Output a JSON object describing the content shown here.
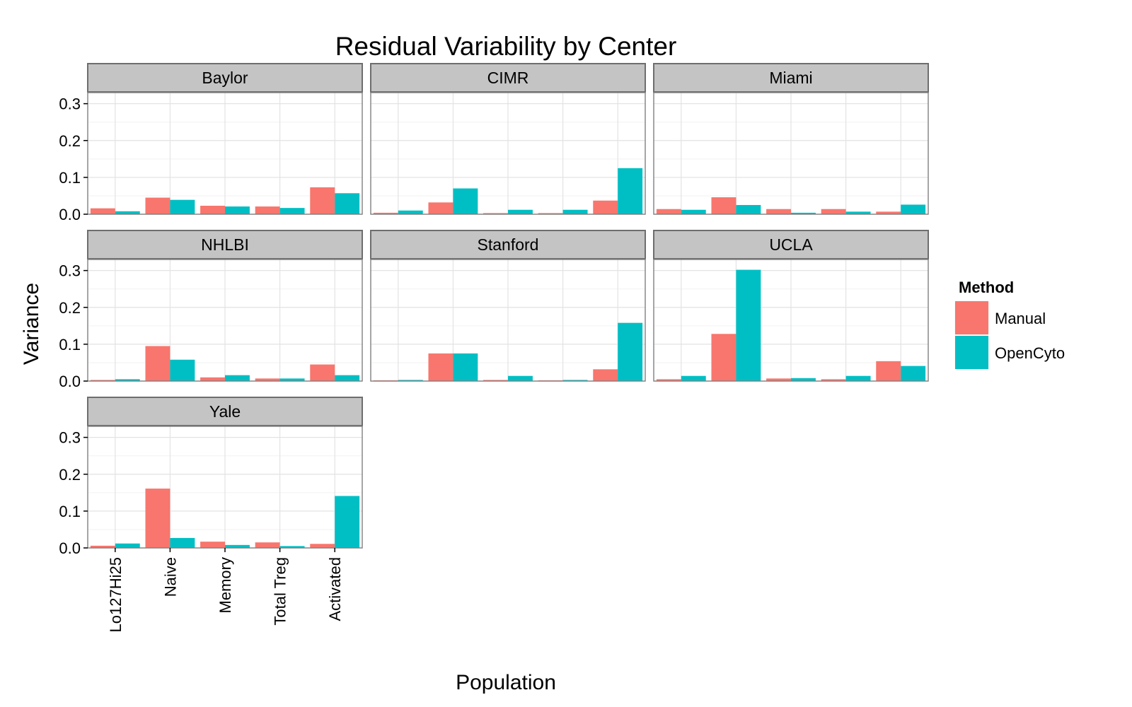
{
  "chart_data": {
    "type": "bar",
    "title": "Residual Variability by Center",
    "xlabel": "Population",
    "ylabel": "Variance",
    "ylim": [
      0,
      0.33
    ],
    "yticks": [
      "0.0",
      "0.1",
      "0.2",
      "0.3"
    ],
    "grid": true,
    "legend": {
      "title": "Method",
      "placement": "right"
    },
    "categories": [
      "Lo127Hi25",
      "Naive",
      "Memory",
      "Total Treg",
      "Activated"
    ],
    "series_names": [
      "Manual",
      "OpenCyto"
    ],
    "colors": {
      "Manual": "#F8766D",
      "OpenCyto": "#00BFC4"
    },
    "facets": [
      {
        "name": "Baylor",
        "series": [
          {
            "name": "Manual",
            "values": [
              0.016,
              0.045,
              0.023,
              0.021,
              0.073
            ]
          },
          {
            "name": "OpenCyto",
            "values": [
              0.008,
              0.039,
              0.021,
              0.017,
              0.057
            ]
          }
        ]
      },
      {
        "name": "CIMR",
        "series": [
          {
            "name": "Manual",
            "values": [
              0.004,
              0.032,
              0.003,
              0.003,
              0.037
            ]
          },
          {
            "name": "OpenCyto",
            "values": [
              0.01,
              0.07,
              0.012,
              0.012,
              0.125
            ]
          }
        ]
      },
      {
        "name": "Miami",
        "series": [
          {
            "name": "Manual",
            "values": [
              0.014,
              0.046,
              0.014,
              0.014,
              0.007
            ]
          },
          {
            "name": "OpenCyto",
            "values": [
              0.012,
              0.025,
              0.004,
              0.007,
              0.026
            ]
          }
        ]
      },
      {
        "name": "NHLBI",
        "series": [
          {
            "name": "Manual",
            "values": [
              0.003,
              0.095,
              0.01,
              0.007,
              0.045
            ]
          },
          {
            "name": "OpenCyto",
            "values": [
              0.005,
              0.058,
              0.016,
              0.007,
              0.016
            ]
          }
        ]
      },
      {
        "name": "Stanford",
        "series": [
          {
            "name": "Manual",
            "values": [
              0.002,
              0.075,
              0.003,
              0.002,
              0.032
            ]
          },
          {
            "name": "OpenCyto",
            "values": [
              0.003,
              0.075,
              0.014,
              0.003,
              0.158
            ]
          }
        ]
      },
      {
        "name": "UCLA",
        "series": [
          {
            "name": "Manual",
            "values": [
              0.005,
              0.128,
              0.007,
              0.005,
              0.054
            ]
          },
          {
            "name": "OpenCyto",
            "values": [
              0.014,
              0.302,
              0.008,
              0.014,
              0.041
            ]
          }
        ]
      },
      {
        "name": "Yale",
        "series": [
          {
            "name": "Manual",
            "values": [
              0.006,
              0.161,
              0.017,
              0.015,
              0.011
            ]
          },
          {
            "name": "OpenCyto",
            "values": [
              0.012,
              0.027,
              0.008,
              0.005,
              0.141
            ]
          }
        ]
      }
    ]
  }
}
